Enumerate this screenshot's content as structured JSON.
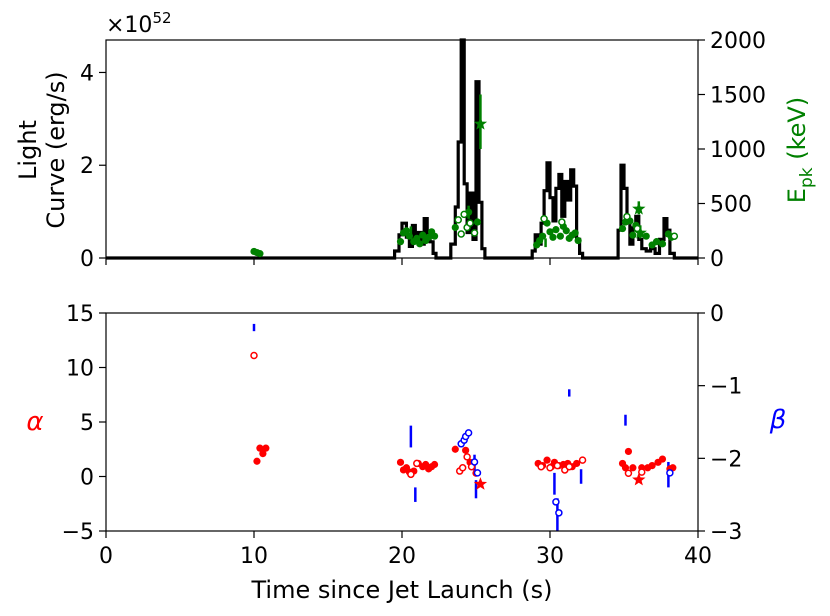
{
  "chart_data": [
    {
      "type": "line",
      "panel": "top",
      "ylabel_line1": "Light",
      "ylabel_line2": "Curve (erg/s)",
      "y_offset_text": "×10",
      "y_offset_exp": "52",
      "ylim": [
        0,
        4.7
      ],
      "yticks": [
        "0",
        "2",
        "4"
      ],
      "y2label_main": "E",
      "y2label_sub": "pk",
      "y2label_unit": " (keV)",
      "y2lim": [
        0,
        2000
      ],
      "y2ticks": [
        "0",
        "500",
        "1000",
        "1500",
        "2000"
      ],
      "xlim": [
        0,
        40
      ],
      "colors": {
        "lightcurve": "#000000",
        "epk": "#008000"
      },
      "lightcurve": {
        "name": "Light Curve",
        "x": [
          0,
          19.5,
          19.5,
          19.8,
          19.8,
          20.0,
          20.0,
          20.3,
          20.3,
          20.5,
          20.5,
          20.7,
          20.7,
          20.9,
          20.9,
          21.1,
          21.1,
          21.3,
          21.3,
          21.5,
          21.5,
          21.7,
          21.7,
          21.9,
          21.9,
          22.1,
          22.1,
          22.3,
          22.3,
          23.3,
          23.3,
          23.6,
          23.6,
          23.8,
          23.8,
          24.0,
          24.0,
          24.2,
          24.2,
          24.4,
          24.4,
          24.6,
          24.6,
          24.8,
          24.8,
          25.0,
          25.0,
          25.2,
          25.2,
          25.4,
          25.4,
          25.6,
          25.6,
          28.8,
          28.8,
          29.0,
          29.0,
          29.2,
          29.2,
          29.4,
          29.4,
          29.6,
          29.6,
          29.8,
          29.8,
          30.0,
          30.0,
          30.2,
          30.2,
          30.4,
          30.4,
          30.6,
          30.6,
          30.8,
          30.8,
          31.0,
          31.0,
          31.2,
          31.2,
          31.4,
          31.4,
          31.6,
          31.6,
          31.8,
          31.8,
          32.0,
          32.0,
          32.2,
          32.2,
          34.6,
          34.6,
          34.8,
          34.8,
          35.0,
          35.0,
          35.2,
          35.2,
          35.4,
          35.4,
          35.6,
          35.6,
          35.8,
          35.8,
          36.0,
          36.0,
          36.2,
          36.2,
          36.5,
          36.5,
          36.8,
          36.8,
          37.1,
          37.1,
          37.4,
          37.4,
          37.7,
          37.7,
          37.9,
          37.9,
          38.1,
          38.1,
          38.4,
          38.4,
          40
        ],
        "y": [
          0,
          0,
          0.15,
          0.15,
          0.5,
          0.5,
          0.75,
          0.75,
          0.45,
          0.45,
          0.25,
          0.25,
          0.7,
          0.7,
          0.4,
          0.4,
          0.55,
          0.55,
          0.3,
          0.3,
          0.85,
          0.85,
          0.5,
          0.5,
          0.35,
          0.35,
          0.1,
          0.1,
          0,
          0,
          0.3,
          0.3,
          1.1,
          1.1,
          2.5,
          2.5,
          4.7,
          4.7,
          1.6,
          1.6,
          0.55,
          0.55,
          1.4,
          1.4,
          0.4,
          0.4,
          3.8,
          3.8,
          1.2,
          1.2,
          0.2,
          0.2,
          0,
          0,
          0.15,
          0.15,
          0.5,
          0.5,
          0.3,
          0.3,
          0.75,
          0.75,
          1.45,
          1.45,
          2.05,
          2.05,
          1.3,
          1.3,
          0.8,
          0.8,
          1.5,
          1.5,
          1.8,
          1.8,
          0.9,
          0.9,
          1.65,
          1.65,
          1.25,
          1.25,
          1.9,
          1.9,
          1.55,
          1.55,
          0.4,
          0.4,
          0.1,
          0.1,
          0,
          0,
          0.6,
          0.6,
          2.0,
          2.0,
          1.5,
          1.5,
          0.8,
          0.8,
          0.3,
          0.3,
          0.65,
          0.65,
          0.9,
          0.9,
          0.4,
          0.4,
          0.2,
          0.2,
          0.15,
          0.15,
          0.2,
          0.2,
          0.1,
          0.1,
          0.4,
          0.4,
          0.85,
          0.85,
          0.6,
          0.6,
          0.1,
          0.1,
          0,
          0
        ]
      },
      "epk": {
        "name": "Epk (keV)",
        "dots": [
          [
            10.0,
            60
          ],
          [
            10.2,
            50
          ],
          [
            10.4,
            40
          ],
          [
            19.9,
            150
          ],
          [
            20.1,
            230
          ],
          [
            20.3,
            250
          ],
          [
            20.5,
            200
          ],
          [
            20.8,
            150
          ],
          [
            21.0,
            180
          ],
          [
            21.2,
            130
          ],
          [
            21.4,
            210
          ],
          [
            21.6,
            160
          ],
          [
            21.8,
            190
          ],
          [
            22.0,
            240
          ],
          [
            22.2,
            200
          ],
          [
            23.6,
            280
          ],
          [
            24.5,
            420
          ],
          [
            25.1,
            330
          ],
          [
            29.1,
            120
          ],
          [
            29.3,
            160
          ],
          [
            29.5,
            200
          ],
          [
            29.8,
            320
          ],
          [
            30.0,
            240
          ],
          [
            30.2,
            190
          ],
          [
            30.4,
            260
          ],
          [
            30.7,
            200
          ],
          [
            30.9,
            290
          ],
          [
            31.1,
            250
          ],
          [
            31.3,
            180
          ],
          [
            31.5,
            210
          ],
          [
            31.7,
            230
          ],
          [
            31.9,
            160
          ],
          [
            34.9,
            270
          ],
          [
            35.1,
            330
          ],
          [
            35.4,
            340
          ],
          [
            35.6,
            210
          ],
          [
            35.8,
            300
          ],
          [
            36.5,
            200
          ],
          [
            36.9,
            120
          ],
          [
            37.2,
            150
          ],
          [
            37.6,
            130
          ],
          [
            38.0,
            220
          ],
          [
            38.2,
            190
          ]
        ],
        "hollow": [
          [
            23.8,
            350
          ],
          [
            24.0,
            220
          ],
          [
            24.2,
            400
          ],
          [
            24.4,
            280
          ],
          [
            24.6,
            320
          ],
          [
            24.9,
            230
          ],
          [
            29.6,
            360
          ],
          [
            30.8,
            330
          ],
          [
            35.2,
            380
          ],
          [
            35.9,
            270
          ],
          [
            38.4,
            200
          ]
        ],
        "stars": [
          [
            25.3,
            1230
          ],
          [
            36.0,
            450
          ],
          [
            36.1,
            230
          ]
        ],
        "errbars": [
          [
            25.3,
            1000,
            1500
          ],
          [
            36.0,
            400,
            520
          ],
          [
            36.1,
            180,
            300
          ],
          [
            24.5,
            360,
            480
          ],
          [
            20.6,
            170,
            290
          ],
          [
            29.7,
            100,
            180
          ]
        ]
      }
    },
    {
      "type": "scatter",
      "panel": "bottom",
      "xlabel": "Time since Jet Launch (s)",
      "xlim": [
        0,
        40
      ],
      "xticks": [
        "0",
        "10",
        "20",
        "30",
        "40"
      ],
      "ylabel": "α",
      "ylim": [
        -5,
        15
      ],
      "yticks": [
        "−5",
        "0",
        "5",
        "10",
        "15"
      ],
      "y2label": "β",
      "y2lim": [
        -3,
        0
      ],
      "y2ticks": [
        "−3",
        "−2",
        "−1",
        "0"
      ],
      "colors": {
        "alpha": "#ff0000",
        "beta": "#0000ff"
      },
      "alpha": {
        "name": "α",
        "dots": [
          [
            10.2,
            1.4
          ],
          [
            10.4,
            2.6
          ],
          [
            10.6,
            2.1
          ],
          [
            10.8,
            2.6
          ],
          [
            19.9,
            1.3
          ],
          [
            20.1,
            0.6
          ],
          [
            20.3,
            0.8
          ],
          [
            20.5,
            0.4
          ],
          [
            20.8,
            0.5
          ],
          [
            21.1,
            1.2
          ],
          [
            21.4,
            0.9
          ],
          [
            21.6,
            1.1
          ],
          [
            21.8,
            0.7
          ],
          [
            22.0,
            0.9
          ],
          [
            22.2,
            1.1
          ],
          [
            23.6,
            2.5
          ],
          [
            24.3,
            2.4
          ],
          [
            24.6,
            1.3
          ],
          [
            25.0,
            0.3
          ],
          [
            29.2,
            1.2
          ],
          [
            29.5,
            1.0
          ],
          [
            29.8,
            1.5
          ],
          [
            30.1,
            0.9
          ],
          [
            30.3,
            1.3
          ],
          [
            30.6,
            1.0
          ],
          [
            30.9,
            1.1
          ],
          [
            31.2,
            1.2
          ],
          [
            31.5,
            0.9
          ],
          [
            31.8,
            1.2
          ],
          [
            34.9,
            1.2
          ],
          [
            35.1,
            0.8
          ],
          [
            35.3,
            2.3
          ],
          [
            35.6,
            0.8
          ],
          [
            36.2,
            0.8
          ],
          [
            36.6,
            0.8
          ],
          [
            36.9,
            1.0
          ],
          [
            37.3,
            1.3
          ],
          [
            37.6,
            1.6
          ],
          [
            38.1,
            0.7
          ],
          [
            38.3,
            0.8
          ]
        ],
        "hollow": [
          [
            10.0,
            11.1
          ],
          [
            20.6,
            0.2
          ],
          [
            21.0,
            1.2
          ],
          [
            23.9,
            0.5
          ],
          [
            24.1,
            0.8
          ],
          [
            24.4,
            1.8
          ],
          [
            24.7,
            0.9
          ],
          [
            29.4,
            0.9
          ],
          [
            30.0,
            0.8
          ],
          [
            30.5,
            1.0
          ],
          [
            31.0,
            0.6
          ],
          [
            31.3,
            0.9
          ],
          [
            32.2,
            1.5
          ],
          [
            35.3,
            0.3
          ],
          [
            36.2,
            0.4
          ]
        ],
        "stars": [
          [
            25.3,
            -0.7
          ],
          [
            36.0,
            -0.3
          ]
        ]
      },
      "beta": {
        "name": "β",
        "hollow": [
          [
            24.0,
            -1.8
          ],
          [
            24.2,
            -1.75
          ],
          [
            24.3,
            -1.7
          ],
          [
            24.5,
            -1.65
          ],
          [
            24.9,
            -2.05
          ],
          [
            25.1,
            -2.2
          ],
          [
            30.4,
            -2.6
          ],
          [
            30.6,
            -2.75
          ],
          [
            38.1,
            -2.2
          ]
        ],
        "errbars": [
          [
            10.0,
            -0.25,
            -0.15
          ],
          [
            20.6,
            -1.85,
            -1.55
          ],
          [
            20.9,
            -2.6,
            -2.4
          ],
          [
            24.9,
            -2.2,
            -1.95
          ],
          [
            25.0,
            -2.55,
            -2.3
          ],
          [
            30.3,
            -2.5,
            -2.2
          ],
          [
            30.5,
            -3.0,
            -2.55
          ],
          [
            31.3,
            -1.15,
            -1.05
          ],
          [
            32.1,
            -2.35,
            -2.15
          ],
          [
            35.1,
            -1.55,
            -1.4
          ],
          [
            38.0,
            -2.4,
            -2.05
          ]
        ]
      }
    }
  ]
}
